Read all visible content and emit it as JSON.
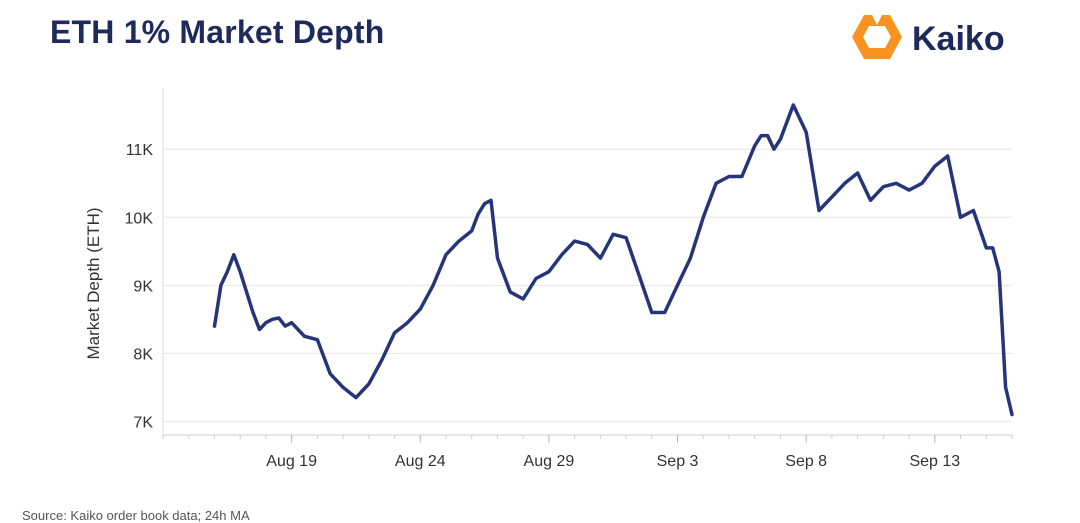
{
  "title": "ETH 1% Market Depth",
  "brand": {
    "name": "Kaiko",
    "logo_icon": "kaiko-logo-icon",
    "logo_color": "#f7931e"
  },
  "source": "Source: Kaiko order book data; 24h MA",
  "colors": {
    "line": "#26357a",
    "grid": "#e6e6e6",
    "title": "#1f2a5c"
  },
  "chart_data": {
    "type": "line",
    "title": "ETH 1% Market Depth",
    "ylabel": "Market Depth (ETH)",
    "xlabel": "",
    "ylim": [
      6800,
      11900
    ],
    "yticks": [
      7000,
      8000,
      9000,
      10000,
      11000
    ],
    "ytick_labels": [
      "7K",
      "8K",
      "9K",
      "10K",
      "11K"
    ],
    "xlim": [
      "2022-08-14",
      "2022-09-16"
    ],
    "xticks": [
      "2022-08-19",
      "2022-08-24",
      "2022-08-29",
      "2022-09-03",
      "2022-09-08",
      "2022-09-13"
    ],
    "xtick_labels": [
      "Aug 19",
      "Aug 24",
      "Aug 29",
      "Sep 3",
      "Sep 8",
      "Sep 13"
    ],
    "grid": true,
    "series": [
      {
        "x": [
          "2022-08-16T00:00",
          "2022-08-16T06:00",
          "2022-08-16T12:00",
          "2022-08-16T18:00",
          "2022-08-17T00:00",
          "2022-08-17T06:00",
          "2022-08-17T12:00",
          "2022-08-17T18:00",
          "2022-08-18T00:00",
          "2022-08-18T06:00",
          "2022-08-18T12:00",
          "2022-08-18T18:00",
          "2022-08-19T00:00",
          "2022-08-19T12:00",
          "2022-08-20T00:00",
          "2022-08-20T12:00",
          "2022-08-21T00:00",
          "2022-08-21T12:00",
          "2022-08-22T00:00",
          "2022-08-22T12:00",
          "2022-08-23T00:00",
          "2022-08-23T12:00",
          "2022-08-24T00:00",
          "2022-08-24T12:00",
          "2022-08-25T00:00",
          "2022-08-25T12:00",
          "2022-08-26T00:00",
          "2022-08-26T06:00",
          "2022-08-26T12:00",
          "2022-08-26T18:00",
          "2022-08-27T00:00",
          "2022-08-27T12:00",
          "2022-08-28T00:00",
          "2022-08-28T12:00",
          "2022-08-29T00:00",
          "2022-08-29T12:00",
          "2022-08-30T00:00",
          "2022-08-30T12:00",
          "2022-08-31T00:00",
          "2022-08-31T12:00",
          "2022-09-01T00:00",
          "2022-09-01T12:00",
          "2022-09-02T00:00",
          "2022-09-02T12:00",
          "2022-09-03T00:00",
          "2022-09-03T12:00",
          "2022-09-04T00:00",
          "2022-09-04T12:00",
          "2022-09-05T00:00",
          "2022-09-05T12:00",
          "2022-09-06T00:00",
          "2022-09-06T06:00",
          "2022-09-06T12:00",
          "2022-09-06T18:00",
          "2022-09-07T00:00",
          "2022-09-07T12:00",
          "2022-09-08T00:00",
          "2022-09-08T12:00",
          "2022-09-09T00:00",
          "2022-09-09T12:00",
          "2022-09-10T00:00",
          "2022-09-10T12:00",
          "2022-09-11T00:00",
          "2022-09-11T12:00",
          "2022-09-12T00:00",
          "2022-09-12T12:00",
          "2022-09-13T00:00",
          "2022-09-13T12:00",
          "2022-09-14T00:00",
          "2022-09-14T12:00",
          "2022-09-15T00:00",
          "2022-09-15T06:00",
          "2022-09-15T12:00",
          "2022-09-15T18:00",
          "2022-09-16T00:00"
        ],
        "values": [
          8400,
          9000,
          9200,
          9450,
          9200,
          8900,
          8600,
          8350,
          8450,
          8500,
          8520,
          8400,
          8450,
          8250,
          8200,
          7700,
          7500,
          7350,
          7550,
          7900,
          8300,
          8450,
          8650,
          9000,
          9450,
          9650,
          9800,
          10050,
          10200,
          10250,
          9400,
          8900,
          8800,
          9100,
          9200,
          9450,
          9650,
          9600,
          9400,
          9750,
          9700,
          9150,
          8600,
          8600,
          9000,
          9400,
          10000,
          10500,
          10600,
          10600,
          11050,
          11200,
          11200,
          11000,
          11150,
          11650,
          11250,
          10100,
          10300,
          10500,
          10650,
          10250,
          10450,
          10500,
          10400,
          10500,
          10750,
          10900,
          10000,
          10100,
          9550,
          9550,
          9200,
          7500,
          7100
        ]
      }
    ]
  }
}
